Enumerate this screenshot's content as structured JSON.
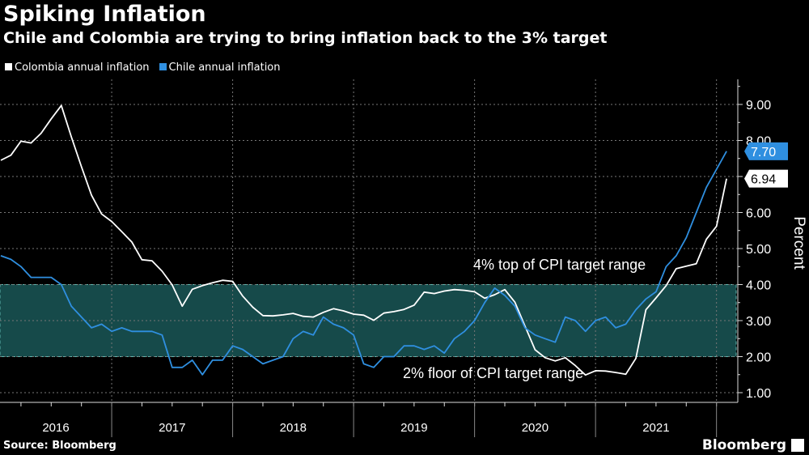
{
  "header": {
    "title": "Spiking Inflation",
    "subtitle": "Chile and Colombia are trying to bring inflation back to the 3% target"
  },
  "footer": {
    "source": "Source: Bloomberg",
    "logo": "Bloomberg"
  },
  "chart_data": {
    "type": "line",
    "x_start": "2016-01",
    "x_end": "2022-01",
    "x_frequency": "monthly",
    "x_tick_labels": [
      "2016",
      "2017",
      "2018",
      "2019",
      "2020",
      "2021"
    ],
    "ylabel": "Percent",
    "ylim": [
      0.8,
      9.6
    ],
    "y_ticks": [
      "1.00",
      "2.00",
      "3.00",
      "4.00",
      "5.00",
      "6.00",
      "7.00",
      "8.00",
      "9.00"
    ],
    "y_tick_labels": [
      "1.00",
      "2.00",
      "3.00",
      "4.00",
      "5.00",
      "6.00",
      "",
      "8.00",
      "9.00"
    ],
    "y_axis_side": "right",
    "grid": true,
    "legend_position": "top-left",
    "band": {
      "from": 2,
      "to": 4,
      "color": "#164a4a"
    },
    "annotations": {
      "top": "4% top of CPI target range",
      "floor": "2% floor of CPI target range"
    },
    "series": [
      {
        "name": "Colombia annual inflation",
        "color": "#ffffff",
        "last_label": "6.94",
        "values": [
          7.45,
          7.59,
          7.98,
          7.93,
          8.2,
          8.6,
          8.97,
          8.1,
          7.27,
          6.48,
          5.96,
          5.75,
          5.47,
          5.18,
          4.69,
          4.66,
          4.37,
          3.99,
          3.4,
          3.87,
          3.97,
          4.05,
          4.12,
          4.09,
          3.68,
          3.37,
          3.14,
          3.13,
          3.16,
          3.2,
          3.12,
          3.1,
          3.23,
          3.33,
          3.27,
          3.18,
          3.15,
          3.01,
          3.21,
          3.25,
          3.31,
          3.43,
          3.79,
          3.75,
          3.82,
          3.86,
          3.84,
          3.8,
          3.62,
          3.72,
          3.86,
          3.51,
          2.85,
          2.19,
          1.97,
          1.88,
          1.97,
          1.75,
          1.49,
          1.61,
          1.6,
          1.56,
          1.51,
          1.95,
          3.3,
          3.63,
          3.97,
          4.44,
          4.51,
          4.58,
          5.26,
          5.62,
          6.94
        ]
      },
      {
        "name": "Chile annual inflation",
        "color": "#2f8fe0",
        "last_label": "7.70",
        "values": [
          4.8,
          4.7,
          4.5,
          4.2,
          4.2,
          4.2,
          4.0,
          3.4,
          3.1,
          2.8,
          2.9,
          2.7,
          2.8,
          2.7,
          2.7,
          2.7,
          2.6,
          1.7,
          1.7,
          1.9,
          1.5,
          1.9,
          1.9,
          2.3,
          2.2,
          2.0,
          1.8,
          1.9,
          2.0,
          2.5,
          2.7,
          2.6,
          3.1,
          2.9,
          2.8,
          2.6,
          1.8,
          1.7,
          2.0,
          2.0,
          2.3,
          2.3,
          2.2,
          2.3,
          2.1,
          2.5,
          2.7,
          3.0,
          3.5,
          3.9,
          3.7,
          3.4,
          2.8,
          2.6,
          2.5,
          2.4,
          3.1,
          3.0,
          2.7,
          3.0,
          3.1,
          2.8,
          2.9,
          3.3,
          3.6,
          3.8,
          4.5,
          4.8,
          5.3,
          6.0,
          6.7,
          7.2,
          7.7
        ]
      }
    ]
  }
}
